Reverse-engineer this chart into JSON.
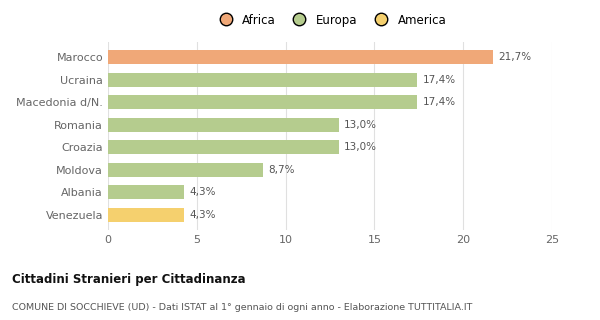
{
  "categories": [
    "Venezuela",
    "Albania",
    "Moldova",
    "Croazia",
    "Romania",
    "Macedonia d/N.",
    "Ucraina",
    "Marocco"
  ],
  "values": [
    4.3,
    4.3,
    8.7,
    13.0,
    13.0,
    17.4,
    17.4,
    21.7
  ],
  "labels": [
    "4,3%",
    "4,3%",
    "8,7%",
    "13,0%",
    "13,0%",
    "17,4%",
    "17,4%",
    "21,7%"
  ],
  "colors": [
    "#f5d06e",
    "#b5cc8e",
    "#b5cc8e",
    "#b5cc8e",
    "#b5cc8e",
    "#b5cc8e",
    "#b5cc8e",
    "#f0a878"
  ],
  "legend": [
    {
      "label": "Africa",
      "color": "#f0a878"
    },
    {
      "label": "Europa",
      "color": "#b5cc8e"
    },
    {
      "label": "America",
      "color": "#f5d06e"
    }
  ],
  "xlim": [
    0,
    25
  ],
  "xticks": [
    0,
    5,
    10,
    15,
    20,
    25
  ],
  "title1": "Cittadini Stranieri per Cittadinanza",
  "title2": "COMUNE DI SOCCHIEVE (UD) - Dati ISTAT al 1° gennaio di ogni anno - Elaborazione TUTTITALIA.IT",
  "background_color": "#ffffff",
  "grid_color": "#e0e0e0",
  "bar_height": 0.62,
  "label_fontsize": 7.5,
  "tick_fontsize": 8,
  "label_color": "#555555",
  "tick_color": "#666666"
}
